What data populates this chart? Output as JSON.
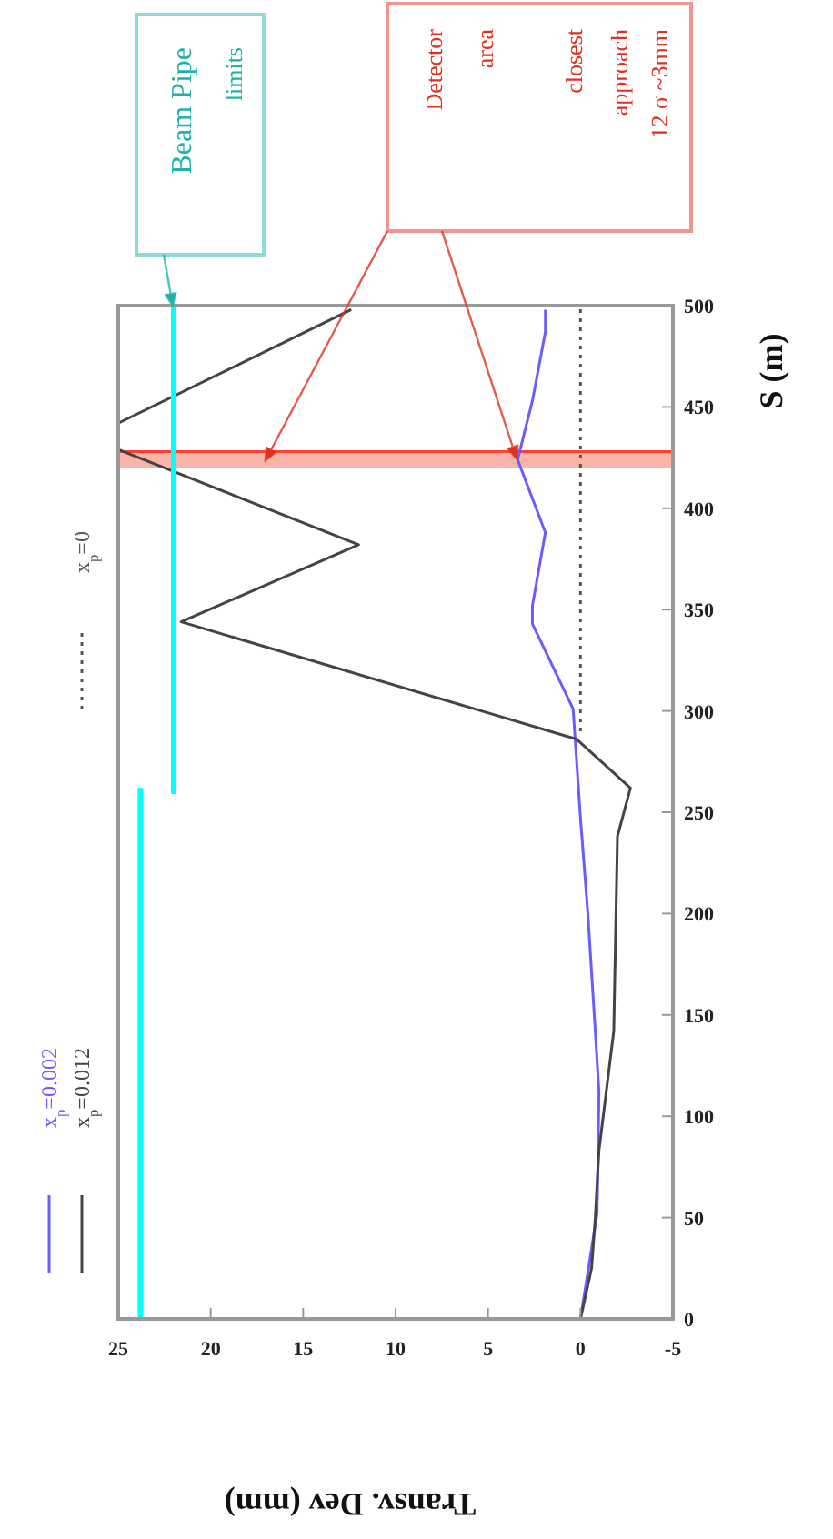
{
  "chart_data": {
    "type": "line",
    "xlabel": "Transv. Dev (mm)",
    "ylabel": "S (m)",
    "xlim": [
      25,
      -5
    ],
    "xticks": [
      25,
      20,
      15,
      10,
      5,
      0,
      -5
    ],
    "ylim": [
      0,
      500
    ],
    "yticks": [
      0,
      50,
      100,
      150,
      200,
      250,
      300,
      350,
      400,
      450,
      500
    ],
    "grid": false,
    "legend": "left",
    "series": [
      {
        "name": "x$_{p}$=0.002",
        "color": "#6a5cff",
        "x": [
          0,
          -0.9,
          -1,
          -0.8,
          -0.4,
          0,
          0.4,
          2.6,
          2.6,
          1.9,
          3.4,
          2.6,
          1.9,
          1.9
        ],
        "values": [
          0,
          52,
          112,
          142,
          200,
          247,
          301,
          343,
          352,
          388,
          424,
          453,
          487,
          498
        ]
      },
      {
        "name": "x$_{p}$=0.012",
        "color": "#444444",
        "x": [
          0,
          -0.6,
          -0.8,
          -1,
          -1.8,
          -2,
          -2.7,
          0.2,
          21.6,
          12,
          25,
          25,
          12.4
        ],
        "values": [
          0,
          25,
          50,
          83,
          142,
          238,
          262,
          286,
          344,
          382,
          429,
          442,
          498
        ]
      },
      {
        "name": "x$_{p}$=0",
        "color": "#555555",
        "line_style": "dotted",
        "x": [
          0,
          0
        ],
        "values": [
          290,
          500
        ]
      },
      {
        "color": "#00ffff",
        "x": [
          23.8,
          23.8
        ],
        "values": [
          0,
          262
        ]
      },
      {
        "color": "#00ffff",
        "x": [
          22,
          22
        ],
        "values": [
          259,
          500
        ]
      }
    ],
    "bands": [
      {
        "axis": "y",
        "from": 420,
        "to": 428,
        "color": "#f8b4a8"
      }
    ],
    "ref_lines": [
      {
        "axis": "y",
        "value": 428,
        "color": "#ff4030"
      }
    ],
    "annotations": [
      "Beam Pipe\nlimits",
      "Detector\narea",
      "closest\napproach\n12 σ ~3mm"
    ]
  }
}
